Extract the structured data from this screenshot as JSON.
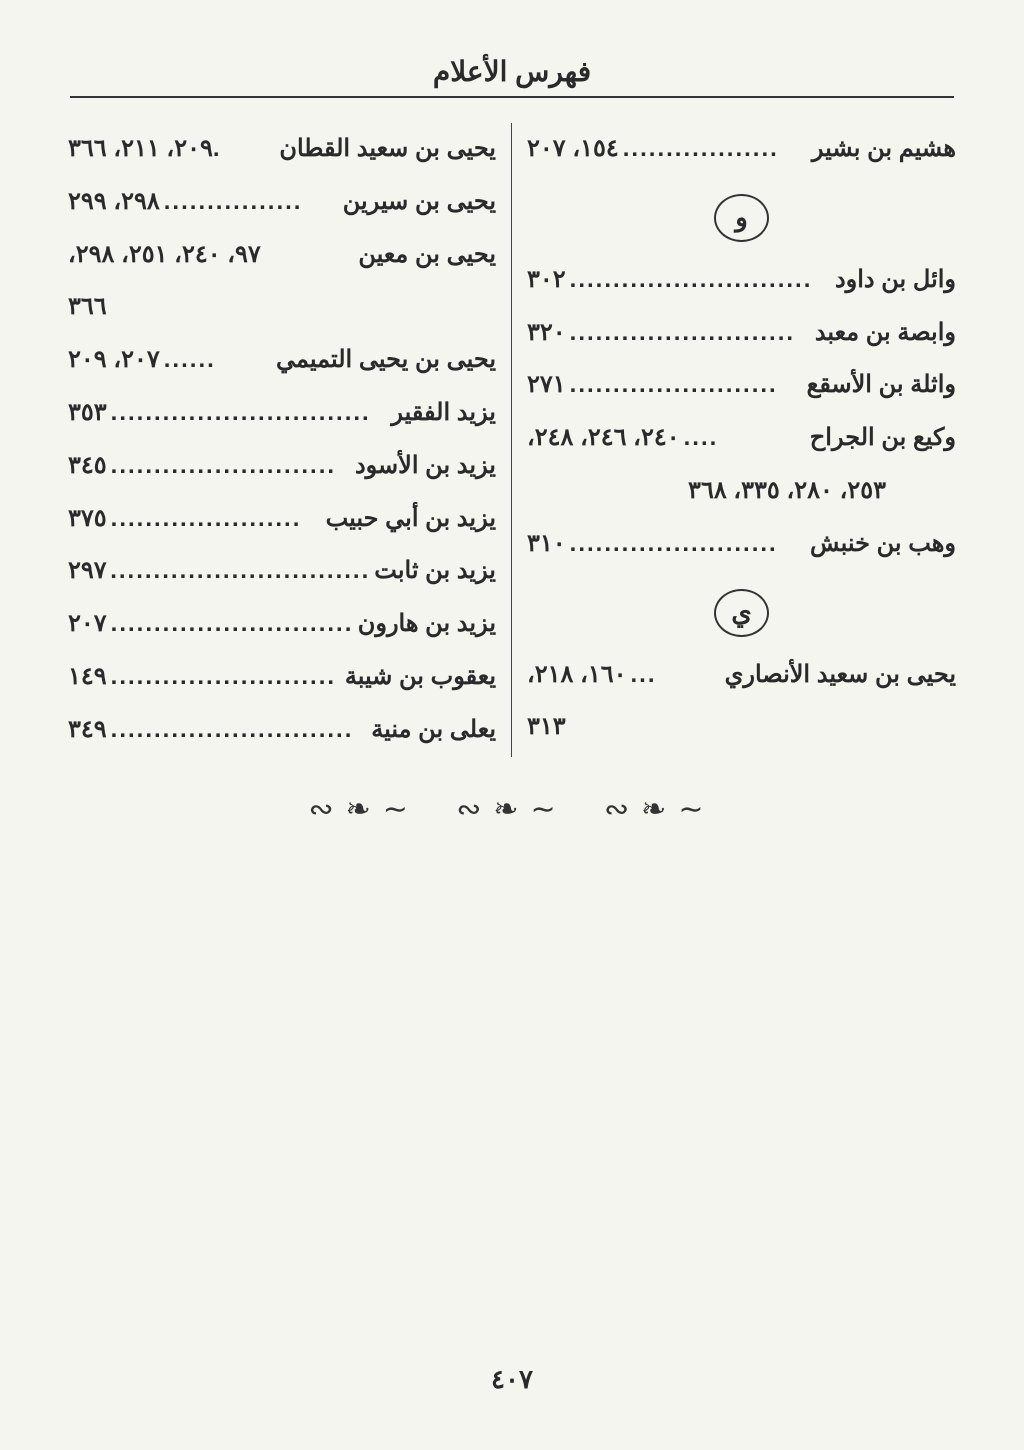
{
  "title": "فهرس الأعلام",
  "pageNumber": "٤٠٧",
  "letterWaw": "و",
  "letterYa": "ي",
  "rightCol": {
    "e1": {
      "name": "هشيم بن بشير",
      "pages": "١٥٤، ٢٠٧"
    },
    "e2": {
      "name": "وائل بن داود",
      "pages": "٣٠٢"
    },
    "e3": {
      "name": "وابصة بن معبد",
      "pages": "٣٢٠"
    },
    "e4": {
      "name": "واثلة بن الأسقع",
      "pages": "٢٧١"
    },
    "e5": {
      "name": "وكيع بن الجراح",
      "pages": "٢٤٠، ٢٤٦، ٢٤٨،"
    },
    "e5cont": "٢٥٣، ٢٨٠، ٣٣٥، ٣٦٨",
    "e6": {
      "name": "وهب بن خنبش",
      "pages": "٣١٠"
    },
    "e7": {
      "name": "يحيى بن سعيد الأنصاري",
      "pages": "١٦٠، ٢١٨،"
    },
    "e7cont": "٣١٣"
  },
  "leftCol": {
    "e1": {
      "name": "يحيى بن سعيد القطان",
      "pages": ".٢٠٩، ٢١١، ٣٦٦"
    },
    "e2": {
      "name": "يحيى بن سيرين",
      "pages": "٢٩٨، ٢٩٩"
    },
    "e3": {
      "name": "يحيى بن معين",
      "pages": "٩٧، ٢٤٠، ٢٥١، ٢٩٨،"
    },
    "e3cont": "٣٦٦",
    "e4": {
      "name": "يحيى بن يحيى التميمي",
      "pages": "٢٠٧، ٢٠٩"
    },
    "e5": {
      "name": "يزيد الفقير",
      "pages": "٣٥٣"
    },
    "e6": {
      "name": "يزيد بن الأسود",
      "pages": "٣٤٥"
    },
    "e7": {
      "name": "يزيد بن أبي حبيب",
      "pages": "٣٧٥"
    },
    "e8": {
      "name": "يزيد بن ثابت",
      "pages": "٢٩٧"
    },
    "e9": {
      "name": "يزيد بن هارون",
      "pages": "٢٠٧"
    },
    "e10": {
      "name": "يعقوب بن شيبة",
      "pages": "١٤٩"
    },
    "e11": {
      "name": "يعلى بن منية",
      "pages": "٣٤٩"
    }
  },
  "ornamentGlyph": "∽❧∾"
}
